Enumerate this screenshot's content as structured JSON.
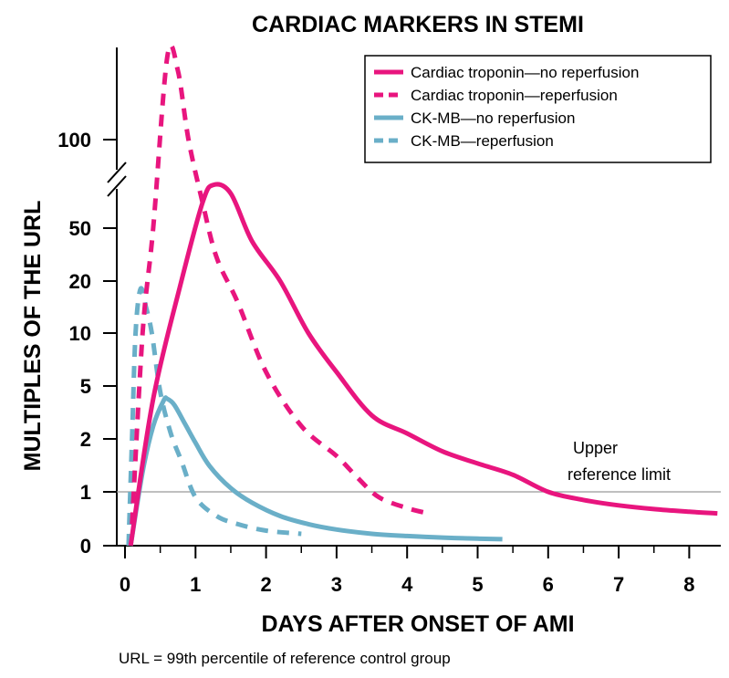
{
  "chart_data": {
    "type": "line",
    "title": "CARDIAC MARKERS IN STEMI",
    "xlabel": "DAYS AFTER ONSET OF AMI",
    "ylabel": "MULTIPLES OF THE URL",
    "footnote": "URL = 99th percentile of reference control group",
    "x_ticks": [
      0,
      1,
      2,
      3,
      4,
      5,
      6,
      7,
      8
    ],
    "x_range": [
      0,
      8.4
    ],
    "y_ticks": [
      {
        "value": 0,
        "label": "0"
      },
      {
        "value": 1,
        "label": "1"
      },
      {
        "value": 2,
        "label": "2"
      },
      {
        "value": 5,
        "label": "5"
      },
      {
        "value": 10,
        "label": "10"
      },
      {
        "value": 20,
        "label": "20"
      },
      {
        "value": 50,
        "label": "50"
      },
      {
        "value": 100,
        "label": "100"
      }
    ],
    "y_scale": "nonlinear (broken axis, log-like)",
    "reference_line": {
      "y": 1,
      "label_line1": "Upper",
      "label_line2": "reference limit"
    },
    "legend_position": "top-right",
    "series": [
      {
        "name": "Cardiac troponin—no reperfusion",
        "color": "#e8157e",
        "dash": false,
        "points": [
          [
            0.08,
            0
          ],
          [
            0.4,
            4
          ],
          [
            0.8,
            20
          ],
          [
            1.1,
            55
          ],
          [
            1.25,
            65
          ],
          [
            1.5,
            60
          ],
          [
            1.8,
            40
          ],
          [
            2.2,
            20
          ],
          [
            2.6,
            10
          ],
          [
            3.0,
            6
          ],
          [
            3.5,
            3
          ],
          [
            4.0,
            2.2
          ],
          [
            4.5,
            1.7
          ],
          [
            5.0,
            1.45
          ],
          [
            5.5,
            1.25
          ],
          [
            6.0,
            1.0
          ],
          [
            6.5,
            0.85
          ],
          [
            7.0,
            0.75
          ],
          [
            7.5,
            0.68
          ],
          [
            8.0,
            0.63
          ],
          [
            8.4,
            0.6
          ]
        ]
      },
      {
        "name": "Cardiac troponin—reperfusion",
        "color": "#e8157e",
        "dash": true,
        "points": [
          [
            0.1,
            0.4
          ],
          [
            0.25,
            10
          ],
          [
            0.4,
            50
          ],
          [
            0.6,
            150
          ],
          [
            0.75,
            140
          ],
          [
            0.9,
            100
          ],
          [
            1.1,
            55
          ],
          [
            1.3,
            30
          ],
          [
            1.6,
            15
          ],
          [
            2.0,
            6
          ],
          [
            2.5,
            2.5
          ],
          [
            3.0,
            1.6
          ],
          [
            3.3,
            1.2
          ],
          [
            3.6,
            0.9
          ],
          [
            4.0,
            0.7
          ],
          [
            4.3,
            0.6
          ]
        ]
      },
      {
        "name": "CK-MB—no reperfusion",
        "color": "#6aafc8",
        "dash": false,
        "points": [
          [
            0.08,
            0
          ],
          [
            0.25,
            1.3
          ],
          [
            0.4,
            2.5
          ],
          [
            0.55,
            3.9
          ],
          [
            0.6,
            4.0
          ],
          [
            0.7,
            3.6
          ],
          [
            0.85,
            2.6
          ],
          [
            1.0,
            1.9
          ],
          [
            1.2,
            1.4
          ],
          [
            1.5,
            1.05
          ],
          [
            1.8,
            0.8
          ],
          [
            2.2,
            0.55
          ],
          [
            2.6,
            0.4
          ],
          [
            3.0,
            0.3
          ],
          [
            3.5,
            0.22
          ],
          [
            4.0,
            0.18
          ],
          [
            4.5,
            0.15
          ],
          [
            5.0,
            0.13
          ],
          [
            5.35,
            0.12
          ]
        ]
      },
      {
        "name": "CK-MB—reperfusion",
        "color": "#6aafc8",
        "dash": true,
        "points": [
          [
            0.05,
            0
          ],
          [
            0.1,
            2
          ],
          [
            0.15,
            10
          ],
          [
            0.22,
            18
          ],
          [
            0.3,
            14
          ],
          [
            0.38,
            10
          ],
          [
            0.5,
            4.5
          ],
          [
            0.65,
            2.2
          ],
          [
            0.8,
            1.5
          ],
          [
            1.0,
            0.9
          ],
          [
            1.3,
            0.55
          ],
          [
            1.6,
            0.4
          ],
          [
            2.0,
            0.28
          ],
          [
            2.5,
            0.22
          ]
        ]
      }
    ]
  }
}
